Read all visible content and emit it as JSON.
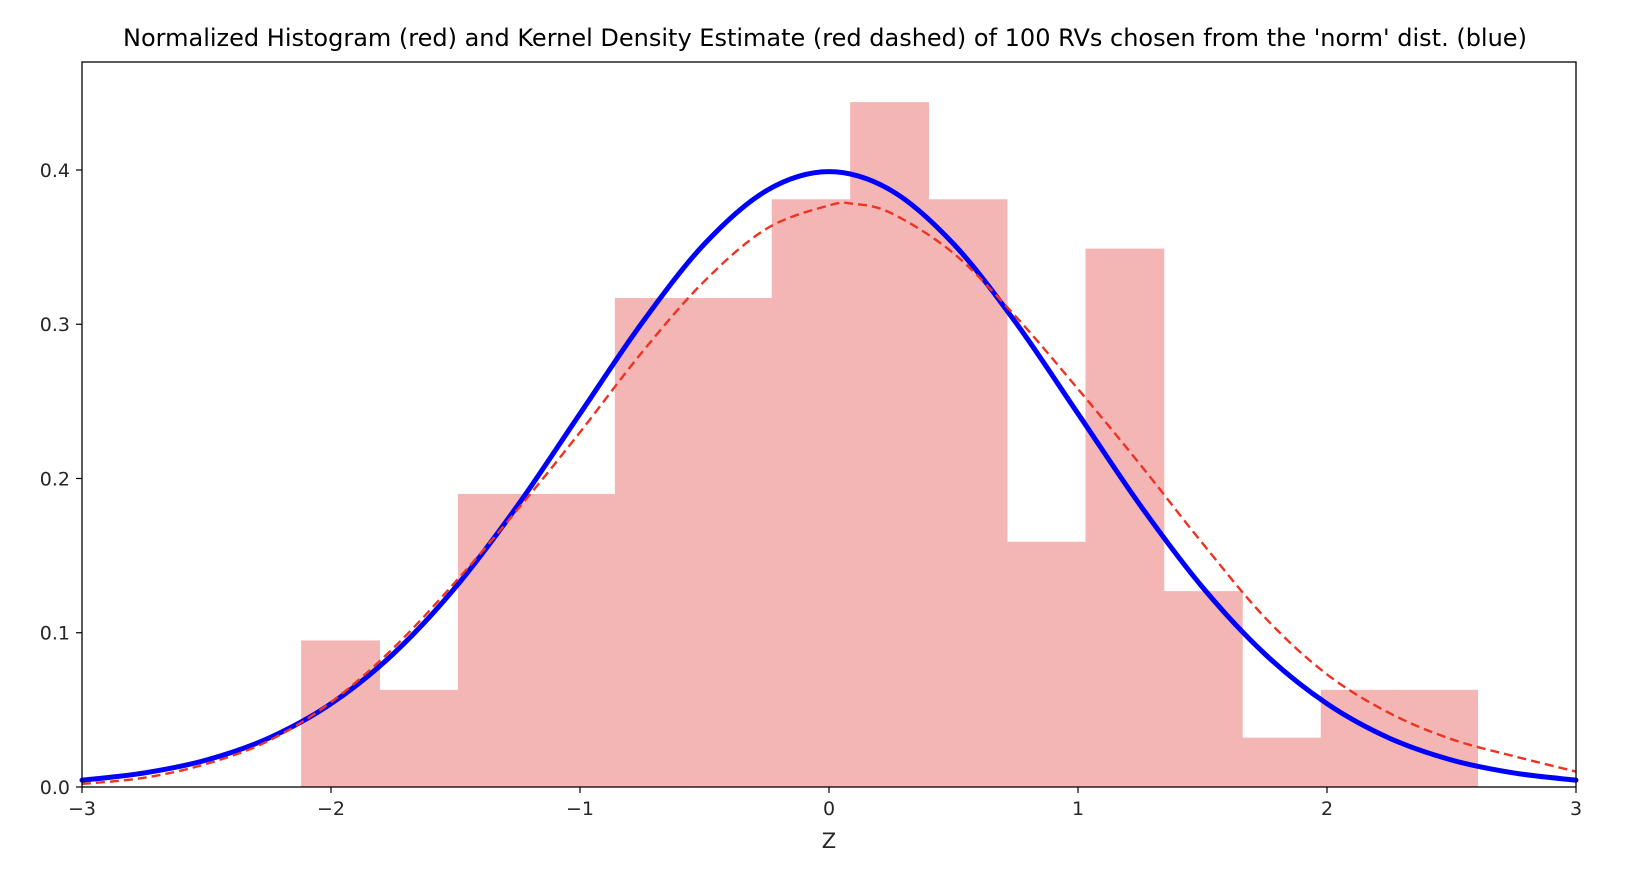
{
  "chart_data": {
    "type": "bar",
    "title": "Normalized Histogram (red) and Kernel Density Estimate (red dashed) of 100 RVs chosen from the 'norm' dist. (blue)",
    "xlabel": "Z",
    "ylabel": "",
    "xlim": [
      -3,
      3
    ],
    "ylim": [
      0,
      0.47
    ],
    "xticks": [
      -3,
      -2,
      -1,
      0,
      1,
      2,
      3
    ],
    "xtick_labels": [
      "−3",
      "−2",
      "−1",
      "0",
      "1",
      "2",
      "3"
    ],
    "yticks": [
      0.0,
      0.1,
      0.2,
      0.3,
      0.4
    ],
    "ytick_labels": [
      "0.0",
      "0.1",
      "0.2",
      "0.3",
      "0.4"
    ],
    "grid": false,
    "histogram": {
      "name": "Normalized Histogram",
      "color": "#F4B5B5",
      "bin_edges": [
        -2.12,
        -1.805,
        -1.49,
        -1.175,
        -0.86,
        -0.545,
        -0.23,
        0.085,
        0.4,
        0.715,
        1.03,
        1.345,
        1.66,
        1.975,
        2.29,
        2.605
      ],
      "values": [
        0.095,
        0.063,
        0.19,
        0.19,
        0.317,
        0.317,
        0.381,
        0.444,
        0.381,
        0.159,
        0.349,
        0.127,
        0.032,
        0.063,
        0.063
      ]
    },
    "series": [
      {
        "name": "norm pdf",
        "style": "solid",
        "color": "#0000FF",
        "x": [
          -3.0,
          -2.75,
          -2.5,
          -2.25,
          -2.0,
          -1.75,
          -1.5,
          -1.25,
          -1.0,
          -0.75,
          -0.5,
          -0.25,
          0.0,
          0.25,
          0.5,
          0.75,
          1.0,
          1.25,
          1.5,
          1.75,
          2.0,
          2.25,
          2.5,
          2.75,
          3.0
        ],
        "y": [
          0.0044,
          0.0091,
          0.0175,
          0.0317,
          0.054,
          0.0863,
          0.1295,
          0.1826,
          0.242,
          0.3011,
          0.3521,
          0.3867,
          0.3989,
          0.3867,
          0.3521,
          0.3011,
          0.242,
          0.1826,
          0.1295,
          0.0863,
          0.054,
          0.0317,
          0.0175,
          0.0091,
          0.0044
        ]
      },
      {
        "name": "Kernel Density Estimate",
        "style": "dashed",
        "color": "#EE3322",
        "x": [
          -3.0,
          -2.75,
          -2.5,
          -2.25,
          -2.0,
          -1.75,
          -1.5,
          -1.25,
          -1.0,
          -0.75,
          -0.5,
          -0.25,
          0.0,
          0.1,
          0.25,
          0.5,
          0.75,
          1.0,
          1.25,
          1.5,
          1.75,
          2.0,
          2.25,
          2.5,
          2.75,
          3.0
        ],
        "y": [
          0.002,
          0.006,
          0.015,
          0.03,
          0.055,
          0.09,
          0.133,
          0.18,
          0.23,
          0.282,
          0.328,
          0.362,
          0.377,
          0.378,
          0.372,
          0.346,
          0.305,
          0.258,
          0.209,
          0.158,
          0.11,
          0.073,
          0.048,
          0.031,
          0.02,
          0.01
        ]
      }
    ]
  }
}
